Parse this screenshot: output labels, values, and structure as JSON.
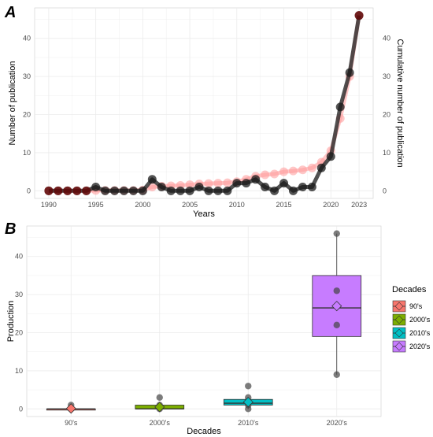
{
  "panels": {
    "a": {
      "letter": "A"
    },
    "b": {
      "letter": "B"
    }
  },
  "chart_data": [
    {
      "type": "line",
      "panel": "A",
      "xlabel": "Years",
      "ylabel": "Number of publication",
      "ylabel_right": "Cumulative number of publication",
      "xlim": [
        1988.5,
        2024.5
      ],
      "ylim": [
        -2,
        48
      ],
      "x_ticks": [
        1990,
        1995,
        2000,
        2005,
        2010,
        2015,
        2020,
        2023
      ],
      "y_ticks": [
        0,
        10,
        20,
        30,
        40
      ],
      "grid": true,
      "x": [
        1990,
        1991,
        1992,
        1993,
        1994,
        1995,
        1996,
        1997,
        1998,
        1999,
        2000,
        2001,
        2002,
        2003,
        2004,
        2005,
        2006,
        2007,
        2008,
        2009,
        2010,
        2011,
        2012,
        2013,
        2014,
        2015,
        2016,
        2017,
        2018,
        2019,
        2020,
        2021,
        2022,
        2023
      ],
      "series": [
        {
          "role": "annual",
          "color": "#262626",
          "values": [
            0,
            0,
            0,
            0,
            0,
            1,
            0,
            0,
            0,
            0,
            0,
            3,
            1,
            0,
            0,
            0,
            1,
            0,
            0,
            0,
            2,
            2,
            3,
            1,
            0,
            2,
            0,
            1,
            1,
            6,
            9,
            22,
            31,
            46
          ]
        },
        {
          "role": "cumulative",
          "color": "#ff9999",
          "values": [
            0,
            0,
            0,
            0,
            0,
            0.1,
            0.1,
            0.1,
            0.1,
            0.1,
            0.2,
            1.0,
            1.2,
            1.3,
            1.4,
            1.6,
            1.8,
            1.9,
            2.0,
            2.1,
            2.4,
            3.0,
            3.8,
            4.2,
            4.4,
            5.0,
            5.2,
            5.5,
            6.0,
            7.5,
            10.5,
            19,
            30,
            46
          ]
        }
      ]
    },
    {
      "type": "box",
      "panel": "B",
      "xlabel": "Decades",
      "ylabel": "Production",
      "ylim": [
        -2,
        48
      ],
      "y_ticks": [
        0,
        10,
        20,
        30,
        40
      ],
      "categories": [
        "90's",
        "2000's",
        "2010's",
        "2020's"
      ],
      "grid": true,
      "legend": {
        "title": "Decades",
        "placement": "right",
        "items": [
          "90's",
          "2000's",
          "2010's",
          "2020's"
        ]
      },
      "boxes": [
        {
          "category": "90's",
          "color": "#f8766d",
          "q1": 0,
          "median": 0,
          "q3": 0,
          "whisker_low": 0,
          "whisker_high": 0,
          "mean": 0.1,
          "points": [
            0,
            1
          ]
        },
        {
          "category": "2000's",
          "color": "#7cae00",
          "q1": 0,
          "median": 0,
          "q3": 1,
          "whisker_low": 0,
          "whisker_high": 1,
          "mean": 0.5,
          "points": [
            0,
            1,
            3
          ]
        },
        {
          "category": "2010's",
          "color": "#00bfc4",
          "q1": 1,
          "median": 1.5,
          "q3": 2.5,
          "whisker_low": 0,
          "whisker_high": 3,
          "mean": 1.8,
          "points": [
            0,
            1,
            2,
            3,
            6
          ]
        },
        {
          "category": "2020's",
          "color": "#c77cff",
          "q1": 19,
          "median": 26.5,
          "q3": 35,
          "whisker_low": 9,
          "whisker_high": 46,
          "mean": 27,
          "points": [
            9,
            22,
            31,
            46
          ]
        }
      ]
    }
  ]
}
